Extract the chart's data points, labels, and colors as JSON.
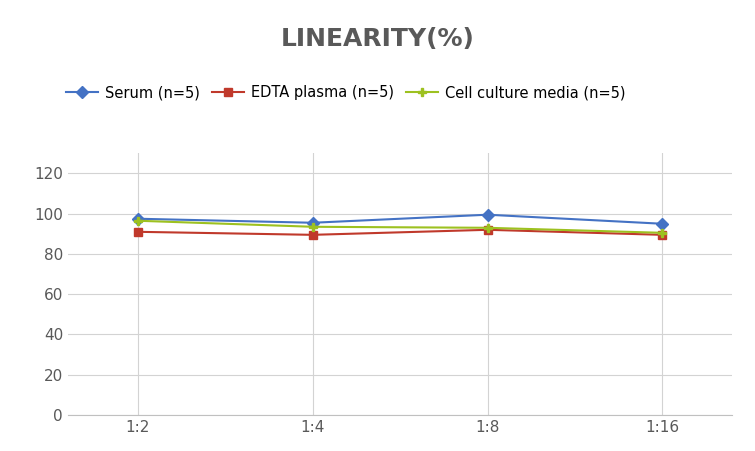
{
  "title": "LINEARITY(%)",
  "title_fontsize": 18,
  "title_fontweight": "bold",
  "title_color": "#595959",
  "x_labels": [
    "1:2",
    "1:4",
    "1:8",
    "1:16"
  ],
  "x_positions": [
    0,
    1,
    2,
    3
  ],
  "series": [
    {
      "label": "Serum (n=5)",
      "color": "#4472C4",
      "marker": "D",
      "markersize": 6,
      "values": [
        97.5,
        95.5,
        99.5,
        95.0
      ]
    },
    {
      "label": "EDTA plasma (n=5)",
      "color": "#C0392B",
      "marker": "s",
      "markersize": 6,
      "values": [
        91.0,
        89.5,
        92.0,
        89.5
      ]
    },
    {
      "label": "Cell culture media (n=5)",
      "color": "#9DC120",
      "marker": "P",
      "markersize": 6,
      "values": [
        96.5,
        93.5,
        93.0,
        90.5
      ]
    }
  ],
  "ylim": [
    0,
    130
  ],
  "yticks": [
    0,
    20,
    40,
    60,
    80,
    100,
    120
  ],
  "background_color": "#ffffff",
  "grid_color": "#d3d3d3",
  "legend_fontsize": 10.5,
  "axis_fontsize": 11,
  "tick_color": "#595959"
}
